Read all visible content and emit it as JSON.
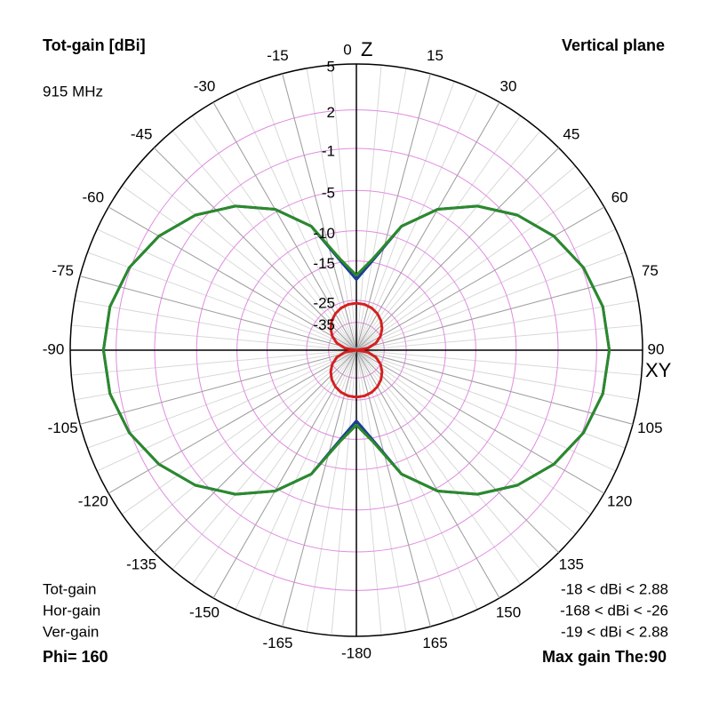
{
  "chart_data": {
    "type": "polar",
    "title": "Tot-gain [dBi]",
    "subtitle": "915 MHz",
    "plane": "Vertical plane",
    "axis_labels": {
      "top": "Z",
      "right": "XY"
    },
    "radial_scale": "arrl",
    "theta": [
      0,
      10,
      20,
      30,
      40,
      50,
      60,
      70,
      80,
      90,
      100,
      110,
      120,
      130,
      140,
      150,
      160,
      170,
      180,
      190,
      200,
      210,
      220,
      230,
      240,
      250,
      260,
      270,
      280,
      290,
      300,
      310,
      320,
      330,
      340,
      350
    ],
    "series": [
      {
        "name": "Ver-gain",
        "color": "#1c3f94",
        "range_label": "-19 < dBi < 2.88",
        "values": [
          -19,
          -14.8,
          -8.3,
          -4.7,
          -2.2,
          -0.3,
          1.1,
          2.1,
          2.7,
          2.88,
          2.7,
          2.1,
          1.1,
          -0.3,
          -2.2,
          -4.7,
          -8.3,
          -14.8,
          -19,
          -14.8,
          -8.3,
          -4.7,
          -2.2,
          -0.3,
          1.1,
          2.1,
          2.7,
          2.88,
          2.7,
          2.1,
          1.1,
          -0.3,
          -2.2,
          -4.7,
          -8.3,
          -14.8
        ]
      },
      {
        "name": "Tot-gain",
        "color": "#2a8a2a",
        "range_label": "-18 < dBi < 2.88",
        "values": [
          -18,
          -14.4,
          -8.3,
          -4.7,
          -2.2,
          -0.3,
          1.1,
          2.1,
          2.7,
          2.88,
          2.7,
          2.1,
          1.1,
          -0.3,
          -2.2,
          -4.7,
          -8.3,
          -14.4,
          -18,
          -14.4,
          -8.3,
          -4.7,
          -2.2,
          -0.3,
          1.1,
          2.1,
          2.7,
          2.88,
          2.7,
          2.1,
          1.1,
          -0.3,
          -2.2,
          -4.7,
          -8.3,
          -14.4
        ]
      },
      {
        "name": "Hor-gain",
        "color": "#d42020",
        "range_label": "-168 < dBi < -26",
        "values": [
          -26,
          -26.2,
          -26.8,
          -27.9,
          -29.5,
          -31.8,
          -35,
          -40,
          -50,
          -168,
          -50,
          -40,
          -35,
          -31.8,
          -29.5,
          -27.9,
          -26.8,
          -26.2,
          -26,
          -26.2,
          -26.8,
          -27.9,
          -29.5,
          -31.8,
          -35,
          -40,
          -50,
          -168,
          -50,
          -40,
          -35,
          -31.8,
          -29.5,
          -27.9,
          -26.8,
          -26.2
        ]
      }
    ],
    "legend_order": [
      "Tot-gain",
      "Hor-gain",
      "Ver-gain"
    ],
    "rticks": [
      5,
      2,
      -1,
      -5,
      -10,
      -15,
      -25,
      -35
    ],
    "angle_ticks": [
      0,
      15,
      30,
      45,
      60,
      75,
      90,
      105,
      120,
      135,
      150,
      165,
      -180,
      -165,
      -150,
      -135,
      -120,
      -105,
      -90,
      -75,
      -60,
      -45,
      -30,
      -15
    ],
    "footer_left": "Phi= 160",
    "footer_right": "Max gain The:90"
  }
}
